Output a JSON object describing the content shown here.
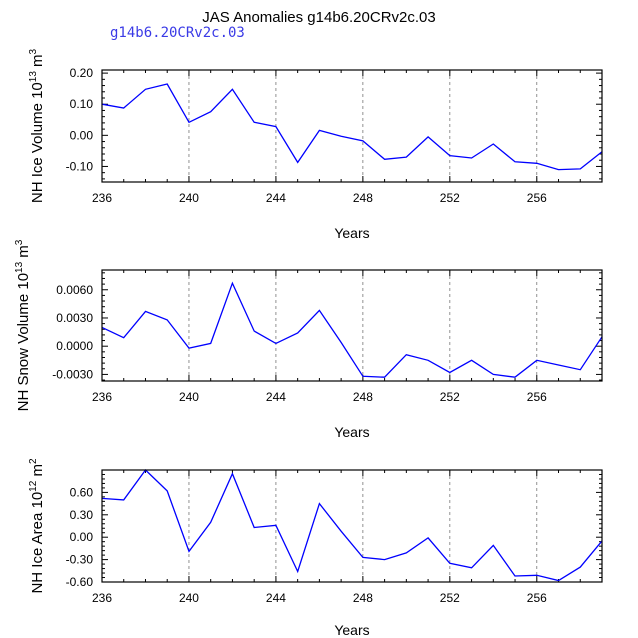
{
  "title": "JAS Anomalies g14b6.20CRv2c.03",
  "subtitle": "g14b6.20CRv2c.03",
  "chart_data": [
    {
      "type": "line",
      "ylabel_main": "NH Ice Volume 10",
      "ylabel_exp": "13",
      "ylabel_unit": "m",
      "ylabel_unit_exp": "3",
      "xlabel": "Years",
      "xlim": [
        236,
        259
      ],
      "ylim": [
        -0.15,
        0.21
      ],
      "xticks": [
        "236",
        "240",
        "244",
        "248",
        "252",
        "256"
      ],
      "xtick_values": [
        236,
        240,
        244,
        248,
        252,
        256
      ],
      "yticks": [
        "0.20",
        "0.10",
        "0.00",
        "-0.10"
      ],
      "ytick_values": [
        0.2,
        0.1,
        0.0,
        -0.1
      ],
      "ytick_minor_step": 0.02,
      "x": [
        236,
        237,
        238,
        239,
        240,
        241,
        242,
        243,
        244,
        245,
        246,
        247,
        248,
        249,
        250,
        251,
        252,
        253,
        254,
        255,
        256,
        257,
        258,
        259
      ],
      "values": [
        0.1,
        0.088,
        0.148,
        0.165,
        0.042,
        0.076,
        0.148,
        0.042,
        0.028,
        -0.087,
        0.016,
        -0.003,
        -0.018,
        -0.077,
        -0.07,
        -0.005,
        -0.065,
        -0.073,
        -0.028,
        -0.085,
        -0.09,
        -0.11,
        -0.108,
        -0.053
      ],
      "line_color": "#0000ff"
    },
    {
      "type": "line",
      "ylabel_main": "NH Snow Volume 10",
      "ylabel_exp": "13",
      "ylabel_unit": "m",
      "ylabel_unit_exp": "3",
      "xlabel": "Years",
      "xlim": [
        236,
        259
      ],
      "ylim": [
        -0.0037,
        0.0081
      ],
      "xticks": [
        "236",
        "240",
        "244",
        "248",
        "252",
        "256"
      ],
      "xtick_values": [
        236,
        240,
        244,
        248,
        252,
        256
      ],
      "yticks": [
        "0.0060",
        "0.0030",
        "0.0000",
        "-0.0030"
      ],
      "ytick_values": [
        0.006,
        0.003,
        0.0,
        -0.003
      ],
      "ytick_minor_step": 0.0006,
      "x": [
        236,
        237,
        238,
        239,
        240,
        241,
        242,
        243,
        244,
        245,
        246,
        247,
        248,
        249,
        250,
        251,
        252,
        253,
        254,
        255,
        256,
        257,
        258,
        259
      ],
      "values": [
        0.002,
        0.0009,
        0.0037,
        0.0028,
        -0.0002,
        0.0003,
        0.0067,
        0.0016,
        0.0003,
        0.0014,
        0.0038,
        0.0004,
        -0.0032,
        -0.0033,
        -0.0009,
        -0.0015,
        -0.0028,
        -0.0015,
        -0.003,
        -0.0033,
        -0.0015,
        -0.002,
        -0.0025,
        0.001
      ],
      "line_color": "#0000ff"
    },
    {
      "type": "line",
      "ylabel_main": "NH Ice Area 10",
      "ylabel_exp": "12",
      "ylabel_unit": "m",
      "ylabel_unit_exp": "2",
      "xlabel": "Years",
      "xlim": [
        236,
        259
      ],
      "ylim": [
        -0.6,
        0.9
      ],
      "xticks": [
        "236",
        "240",
        "244",
        "248",
        "252",
        "256"
      ],
      "xtick_values": [
        236,
        240,
        244,
        248,
        252,
        256
      ],
      "yticks": [
        "0.60",
        "0.30",
        "0.00",
        "-0.30",
        "-0.60"
      ],
      "ytick_values": [
        0.6,
        0.3,
        0.0,
        -0.3,
        -0.6
      ],
      "ytick_minor_step": 0.06,
      "x": [
        236,
        237,
        238,
        239,
        240,
        241,
        242,
        243,
        244,
        245,
        246,
        247,
        248,
        249,
        250,
        251,
        252,
        253,
        254,
        255,
        256,
        257,
        258,
        259
      ],
      "values": [
        0.52,
        0.5,
        0.9,
        0.62,
        -0.19,
        0.2,
        0.85,
        0.13,
        0.16,
        -0.46,
        0.45,
        0.08,
        -0.27,
        -0.3,
        -0.21,
        -0.01,
        -0.35,
        -0.41,
        -0.11,
        -0.52,
        -0.51,
        -0.58,
        -0.4,
        -0.05
      ],
      "line_color": "#0000ff"
    }
  ]
}
